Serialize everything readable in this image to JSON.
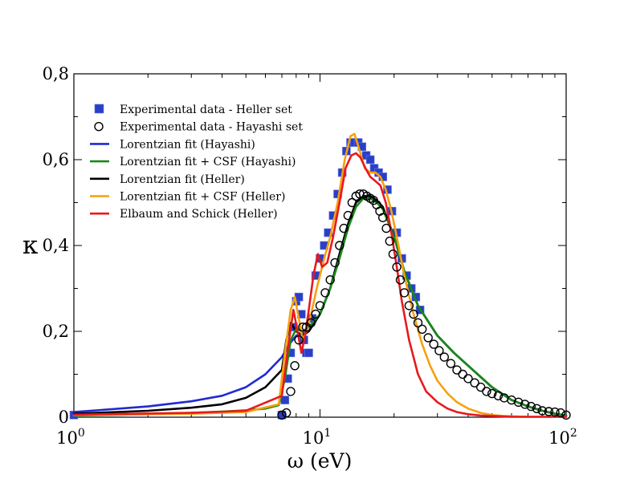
{
  "chart_data": {
    "type": "line",
    "title": "",
    "xlabel": "ω (eV)",
    "ylabel": "κ",
    "xscale": "log",
    "xlim": [
      1,
      100
    ],
    "ylim": [
      0,
      0.8
    ],
    "x_ticks": [
      {
        "value": 1,
        "base": "10",
        "exp": "0"
      },
      {
        "value": 10,
        "base": "10",
        "exp": "1"
      },
      {
        "value": 100,
        "base": "10",
        "exp": "2"
      }
    ],
    "y_ticks": [
      {
        "value": 0,
        "label": "0"
      },
      {
        "value": 0.2,
        "label": "0,2"
      },
      {
        "value": 0.4,
        "label": "0,4"
      },
      {
        "value": 0.6,
        "label": "0,6"
      },
      {
        "value": 0.8,
        "label": "0,8"
      }
    ],
    "legend_position": "top-left",
    "series": [
      {
        "name": "Experimental data - Heller set",
        "kind": "square-markers",
        "color": "#2a3fc8",
        "x": [
          1,
          7,
          7.2,
          7.4,
          7.6,
          7.8,
          8.0,
          8.2,
          8.4,
          8.6,
          8.8,
          9.0,
          9.3,
          9.6,
          10.0,
          10.4,
          10.8,
          11.3,
          11.8,
          12.3,
          12.8,
          13.3,
          13.8,
          14.3,
          14.8,
          15.4,
          16.0,
          16.6,
          17.3,
          18.0,
          18.8,
          19.6,
          20.5,
          21.5,
          22.5,
          23.5,
          24.5,
          25.5
        ],
        "y": [
          0.005,
          0.005,
          0.04,
          0.09,
          0.15,
          0.21,
          0.27,
          0.28,
          0.24,
          0.18,
          0.15,
          0.15,
          0.23,
          0.33,
          0.37,
          0.4,
          0.43,
          0.47,
          0.52,
          0.57,
          0.62,
          0.64,
          0.64,
          0.64,
          0.63,
          0.61,
          0.6,
          0.58,
          0.57,
          0.56,
          0.53,
          0.48,
          0.43,
          0.37,
          0.33,
          0.3,
          0.28,
          0.25
        ]
      },
      {
        "name": "Experimental data - Hayashi set",
        "kind": "circle-markers",
        "color": "#000000",
        "x": [
          7.0,
          7.3,
          7.6,
          7.9,
          8.2,
          8.5,
          8.8,
          9.2,
          9.6,
          10.0,
          10.5,
          11.0,
          11.5,
          12.0,
          12.5,
          13.0,
          13.5,
          14.0,
          14.5,
          15.0,
          15.5,
          16.0,
          16.5,
          17.0,
          17.5,
          18.0,
          18.6,
          19.2,
          19.8,
          20.5,
          21.2,
          22.0,
          23.0,
          24.0,
          25.0,
          26.0,
          27.5,
          29.0,
          30.5,
          32.0,
          34.0,
          36.0,
          38.0,
          40.0,
          42.5,
          45.0,
          47.5,
          50.0,
          53.0,
          56.0,
          60.0,
          64.0,
          68.0,
          72.0,
          76.0,
          80.0,
          85.0,
          90.0,
          95.0,
          100.0
        ],
        "y": [
          0.005,
          0.01,
          0.06,
          0.12,
          0.18,
          0.21,
          0.21,
          0.22,
          0.24,
          0.26,
          0.29,
          0.32,
          0.36,
          0.4,
          0.44,
          0.47,
          0.5,
          0.515,
          0.52,
          0.52,
          0.515,
          0.51,
          0.505,
          0.495,
          0.48,
          0.465,
          0.44,
          0.41,
          0.38,
          0.35,
          0.32,
          0.29,
          0.26,
          0.24,
          0.22,
          0.205,
          0.185,
          0.17,
          0.155,
          0.14,
          0.125,
          0.11,
          0.1,
          0.09,
          0.08,
          0.07,
          0.06,
          0.055,
          0.05,
          0.045,
          0.04,
          0.035,
          0.03,
          0.025,
          0.02,
          0.015,
          0.013,
          0.012,
          0.01,
          0.005
        ]
      },
      {
        "name": "Lorentzian fit (Hayashi)",
        "kind": "line",
        "color": "#1f2ad1",
        "x": [
          1,
          2,
          3,
          4,
          5,
          6,
          7,
          7.5,
          8,
          8.5,
          9,
          10,
          11,
          12,
          13,
          14,
          15,
          16,
          17,
          18,
          20,
          22,
          25,
          30,
          35,
          40,
          50,
          60,
          70,
          80,
          90,
          100
        ],
        "y": [
          0.012,
          0.025,
          0.037,
          0.05,
          0.07,
          0.1,
          0.14,
          0.17,
          0.19,
          0.195,
          0.2,
          0.24,
          0.3,
          0.38,
          0.45,
          0.5,
          0.515,
          0.515,
          0.505,
          0.49,
          0.42,
          0.34,
          0.26,
          0.19,
          0.15,
          0.12,
          0.07,
          0.04,
          0.025,
          0.015,
          0.008,
          0.004
        ]
      },
      {
        "name": "Lorentzian fit + CSF (Hayashi)",
        "kind": "line",
        "color": "#178a17",
        "x": [
          1,
          2,
          3,
          4,
          5,
          6,
          6.8,
          7.2,
          7.6,
          8,
          8.5,
          9,
          10,
          11,
          12,
          13,
          14,
          15,
          16,
          17,
          18,
          20,
          22,
          25,
          30,
          35,
          40,
          50,
          60,
          70,
          80,
          90,
          100
        ],
        "y": [
          0.004,
          0.007,
          0.01,
          0.013,
          0.016,
          0.02,
          0.028,
          0.09,
          0.18,
          0.205,
          0.2,
          0.21,
          0.24,
          0.3,
          0.37,
          0.44,
          0.49,
          0.51,
          0.51,
          0.5,
          0.485,
          0.42,
          0.34,
          0.26,
          0.19,
          0.15,
          0.12,
          0.07,
          0.04,
          0.025,
          0.015,
          0.008,
          0.004
        ]
      },
      {
        "name": "Lorentzian fit (Heller)",
        "kind": "line",
        "color": "#000000",
        "x": [
          1,
          2,
          3,
          4,
          5,
          6,
          7,
          7.3,
          7.6,
          8,
          8.5,
          9,
          10,
          11,
          12,
          13,
          14,
          15,
          16,
          17,
          18,
          20,
          22,
          25,
          30,
          35,
          40,
          50,
          60,
          70,
          80,
          90,
          100
        ],
        "y": [
          0.008,
          0.015,
          0.022,
          0.03,
          0.045,
          0.07,
          0.11,
          0.18,
          0.22,
          0.2,
          0.19,
          0.2,
          0.24,
          0.3,
          0.38,
          0.45,
          0.5,
          0.515,
          0.515,
          0.505,
          0.49,
          0.42,
          0.34,
          0.26,
          0.19,
          0.15,
          0.12,
          0.07,
          0.04,
          0.025,
          0.015,
          0.008,
          0.004
        ]
      },
      {
        "name": "Lorentzian fit + CSF (Heller)",
        "kind": "line",
        "color": "#f6a10e",
        "x": [
          1,
          3,
          5,
          6.8,
          7.2,
          7.6,
          7.9,
          8.2,
          8.5,
          8.8,
          9.2,
          9.7,
          10.3,
          11,
          11.8,
          12.6,
          13.3,
          13.8,
          14.5,
          15.2,
          16,
          16.8,
          17.6,
          18.5,
          19.5,
          20.5,
          22,
          24,
          26,
          28,
          30,
          33,
          36,
          40,
          45,
          50,
          55,
          60,
          70,
          80,
          100
        ],
        "y": [
          0.005,
          0.008,
          0.012,
          0.03,
          0.15,
          0.25,
          0.28,
          0.23,
          0.18,
          0.2,
          0.24,
          0.3,
          0.36,
          0.42,
          0.5,
          0.6,
          0.655,
          0.66,
          0.62,
          0.58,
          0.57,
          0.57,
          0.56,
          0.53,
          0.48,
          0.42,
          0.33,
          0.24,
          0.17,
          0.12,
          0.085,
          0.055,
          0.035,
          0.02,
          0.01,
          0.005,
          0.003,
          0.002,
          0.001,
          0.001,
          0.001
        ]
      },
      {
        "name": "Elbaum and Schick (Heller)",
        "kind": "line",
        "color": "#e8191e",
        "x": [
          1,
          3,
          5,
          7,
          7.4,
          7.8,
          8.1,
          8.4,
          8.7,
          9.0,
          9.4,
          9.8,
          10.2,
          10.7,
          11.3,
          12.0,
          12.7,
          13.4,
          14.0,
          14.6,
          15.3,
          16.0,
          16.8,
          17.6,
          18.5,
          19.5,
          20.5,
          21.5,
          23,
          25,
          27,
          30,
          33,
          36,
          40,
          45,
          50,
          55,
          60,
          70,
          80,
          100
        ],
        "y": [
          0.006,
          0.01,
          0.015,
          0.05,
          0.16,
          0.25,
          0.2,
          0.15,
          0.19,
          0.25,
          0.33,
          0.38,
          0.35,
          0.36,
          0.42,
          0.5,
          0.58,
          0.61,
          0.615,
          0.605,
          0.58,
          0.56,
          0.55,
          0.54,
          0.5,
          0.43,
          0.35,
          0.27,
          0.18,
          0.1,
          0.06,
          0.035,
          0.02,
          0.012,
          0.007,
          0.004,
          0.003,
          0.002,
          0.001,
          0.001,
          0.001,
          0.001
        ]
      }
    ]
  }
}
